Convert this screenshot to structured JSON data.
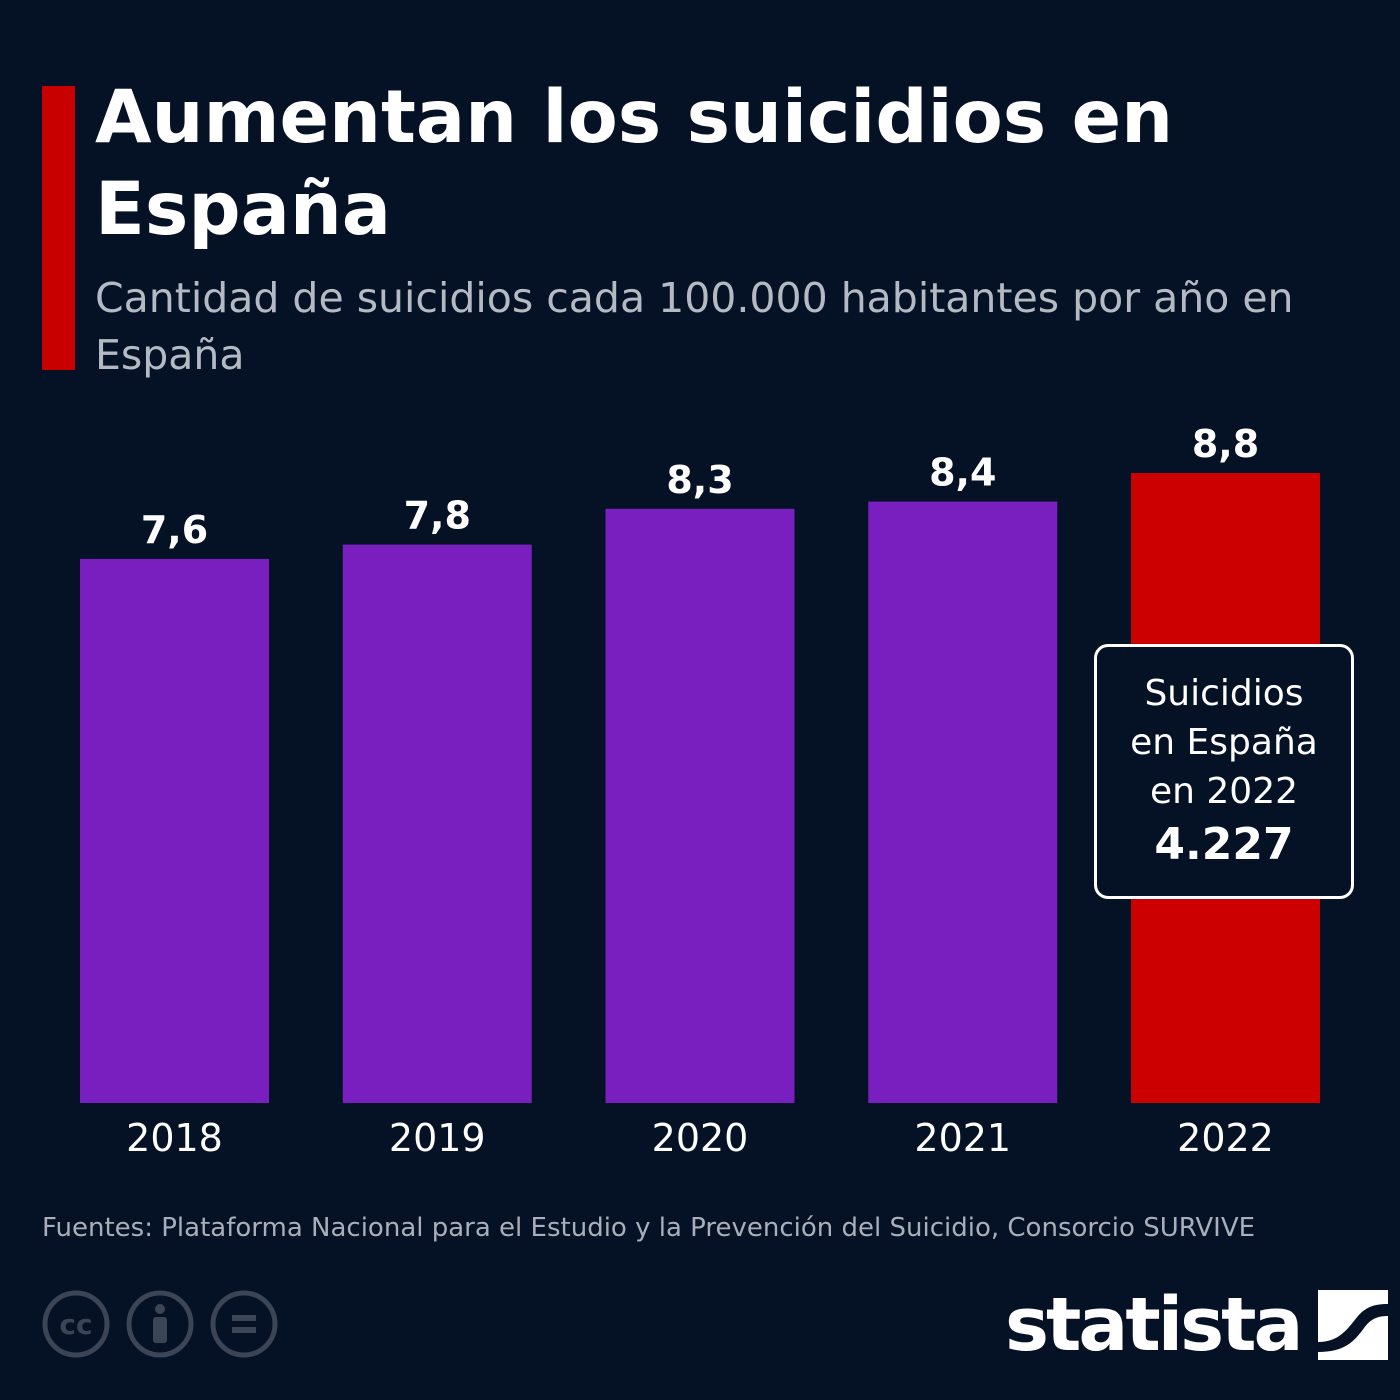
{
  "colors": {
    "background": "#051225",
    "accent": "#c90000",
    "bar_default": "#7a1fbf",
    "bar_highlight": "#cc0000",
    "text": "#ffffff",
    "muted": "#b4bac4"
  },
  "header": {
    "title": "Aumentan los suicidios en España",
    "subtitle": "Cantidad de suicidios cada 100.000 habitantes por año en España"
  },
  "chart_data": {
    "type": "bar",
    "title": "Aumentan los suicidios en España",
    "subtitle": "Cantidad de suicidios cada 100.000 habitantes por año en España",
    "categories": [
      "2018",
      "2019",
      "2020",
      "2021",
      "2022"
    ],
    "values": [
      7.6,
      7.8,
      8.3,
      8.4,
      8.8
    ],
    "value_labels": [
      "7,6",
      "7,8",
      "8,3",
      "8,4",
      "8,8"
    ],
    "highlight_index": 4,
    "xlabel": "",
    "ylabel": "",
    "ylim": [
      0,
      8.8
    ],
    "grid": false
  },
  "callout": {
    "line1": "Suicidios",
    "line2": "en España",
    "line3": "en 2022",
    "value": "4.227"
  },
  "footer": {
    "source": "Fuentes: Plataforma Nacional para el Estudio y la Prevención del Suicidio, Consorcio SURVIVE",
    "cc_label": "cc",
    "brand": "statista"
  },
  "icons": [
    "cc-icon",
    "attribution-icon",
    "no-derivatives-icon",
    "statista-logo-icon"
  ]
}
